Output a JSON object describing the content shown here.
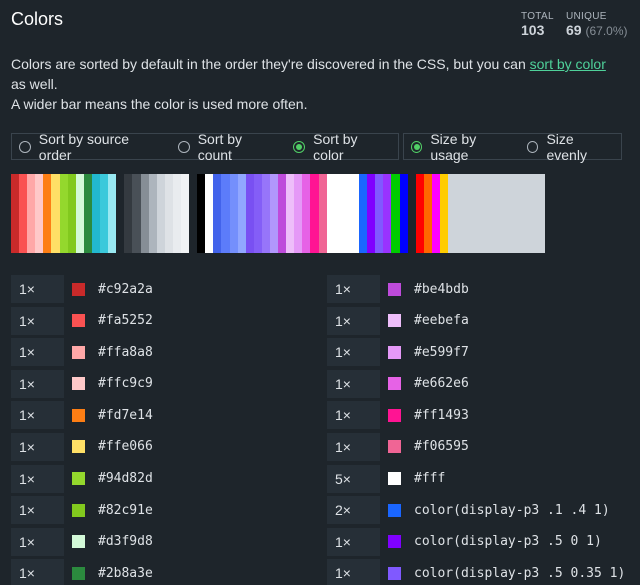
{
  "header": {
    "title": "Colors",
    "stats": [
      {
        "label": "TOTAL",
        "value": "103"
      },
      {
        "label": "UNIQUE",
        "value": "69",
        "note": "(67.0%)"
      }
    ]
  },
  "intro": {
    "before": "Colors are sorted by default in the order they're discovered in the CSS, but you can ",
    "link": "sort by color",
    "after": " as well.",
    "line2": "A wider bar means the color is used more often."
  },
  "controls": {
    "sort": [
      {
        "label": "Sort by source order",
        "selected": false
      },
      {
        "label": "Sort by count",
        "selected": false
      },
      {
        "label": "Sort by color",
        "selected": true
      }
    ],
    "size": [
      {
        "label": "Size by usage",
        "selected": true
      },
      {
        "label": "Size evenly",
        "selected": false
      }
    ]
  },
  "bar": {
    "stripes": [
      "#c92a2a",
      "#fa5252",
      "#ffa8a8",
      "#ffc9c9",
      "#fd7e14",
      "#ffe066",
      "#94d82d",
      "#82c91e",
      "#d3f9d8",
      "#2b8a3e",
      "#22b8cf",
      "#3bc9db",
      "#99e9f2",
      "#1e252b",
      "#343a40",
      "#495057",
      "#868e96",
      "#adb5bd",
      "#ced4da",
      "#dee2e6",
      "#e9ecef",
      "#f1f3f5",
      "#1e252b",
      "#000000",
      "#ffffff",
      "#4263eb",
      "#5c7cfa",
      "#748ffc",
      "#91a7ff",
      "#7950f2",
      "#845ef7",
      "#9775fa",
      "#b197fc",
      "#be4bdb",
      "#eebefa",
      "#e599f7",
      "#e662e6",
      "#ff1493",
      "#f06595",
      "#ffffff",
      "#ffffff",
      "#ffffff",
      "#ffffff",
      "#1a66ff",
      "#8000ff",
      "#8059ff",
      "#9933ff",
      "#00cc00",
      "#0000ff",
      "#1e252b",
      "#ff0000",
      "#ff6600",
      "#ff00ff",
      "#ffcc00",
      "#ced4da"
    ]
  },
  "table": {
    "left": [
      [
        "1×",
        "#c92a2a",
        "#c92a2a"
      ],
      [
        "1×",
        "#fa5252",
        "#fa5252"
      ],
      [
        "1×",
        "#ffa8a8",
        "#ffa8a8"
      ],
      [
        "1×",
        "#ffc9c9",
        "#ffc9c9"
      ],
      [
        "1×",
        "#fd7e14",
        "#fd7e14"
      ],
      [
        "1×",
        "#ffe066",
        "#ffe066"
      ],
      [
        "1×",
        "#94d82d",
        "#94d82d"
      ],
      [
        "1×",
        "#82c91e",
        "#82c91e"
      ],
      [
        "1×",
        "#d3f9d8",
        "#d3f9d8"
      ],
      [
        "1×",
        "#2b8a3e",
        "#2b8a3e"
      ]
    ],
    "right": [
      [
        "1×",
        "#be4bdb",
        "#be4bdb"
      ],
      [
        "1×",
        "#eebefa",
        "#eebefa"
      ],
      [
        "1×",
        "#e599f7",
        "#e599f7"
      ],
      [
        "1×",
        "#e662e6",
        "#e662e6"
      ],
      [
        "1×",
        "#ff1493",
        "#ff1493"
      ],
      [
        "1×",
        "#f06595",
        "#f06595"
      ],
      [
        "5×",
        "#fff",
        "#ffffff"
      ],
      [
        "2×",
        "color(display-p3 .1 .4 1)",
        "#1a66ff"
      ],
      [
        "1×",
        "color(display-p3 .5 0 1)",
        "#8000ff"
      ],
      [
        "1×",
        "color(display-p3 .5 0.35 1)",
        "#8059ff"
      ]
    ]
  }
}
